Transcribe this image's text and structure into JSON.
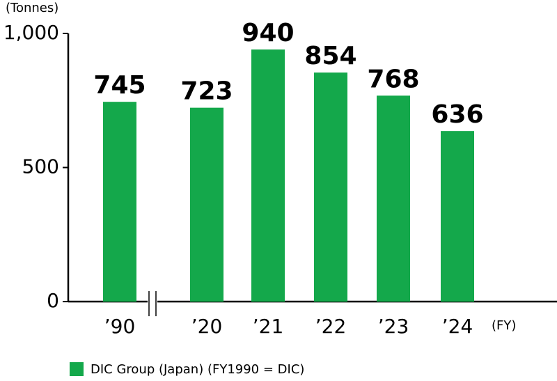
{
  "chart_data": {
    "type": "bar",
    "y_axis_label": "(Tonnes)",
    "x_axis_label": "(FY)",
    "categories": [
      "’90",
      "’20",
      "’21",
      "’22",
      "’23",
      "’24"
    ],
    "series": [
      {
        "name": "DIC Group (Japan) (FY1990 = DIC)",
        "color": "#14a84b",
        "values": [
          745,
          723,
          940,
          854,
          768,
          636
        ]
      }
    ],
    "ylim": [
      0,
      1000
    ],
    "yticks": [
      0,
      500,
      {
        "value": 1000,
        "label": "1,000"
      }
    ],
    "legend": "bottom-left"
  }
}
